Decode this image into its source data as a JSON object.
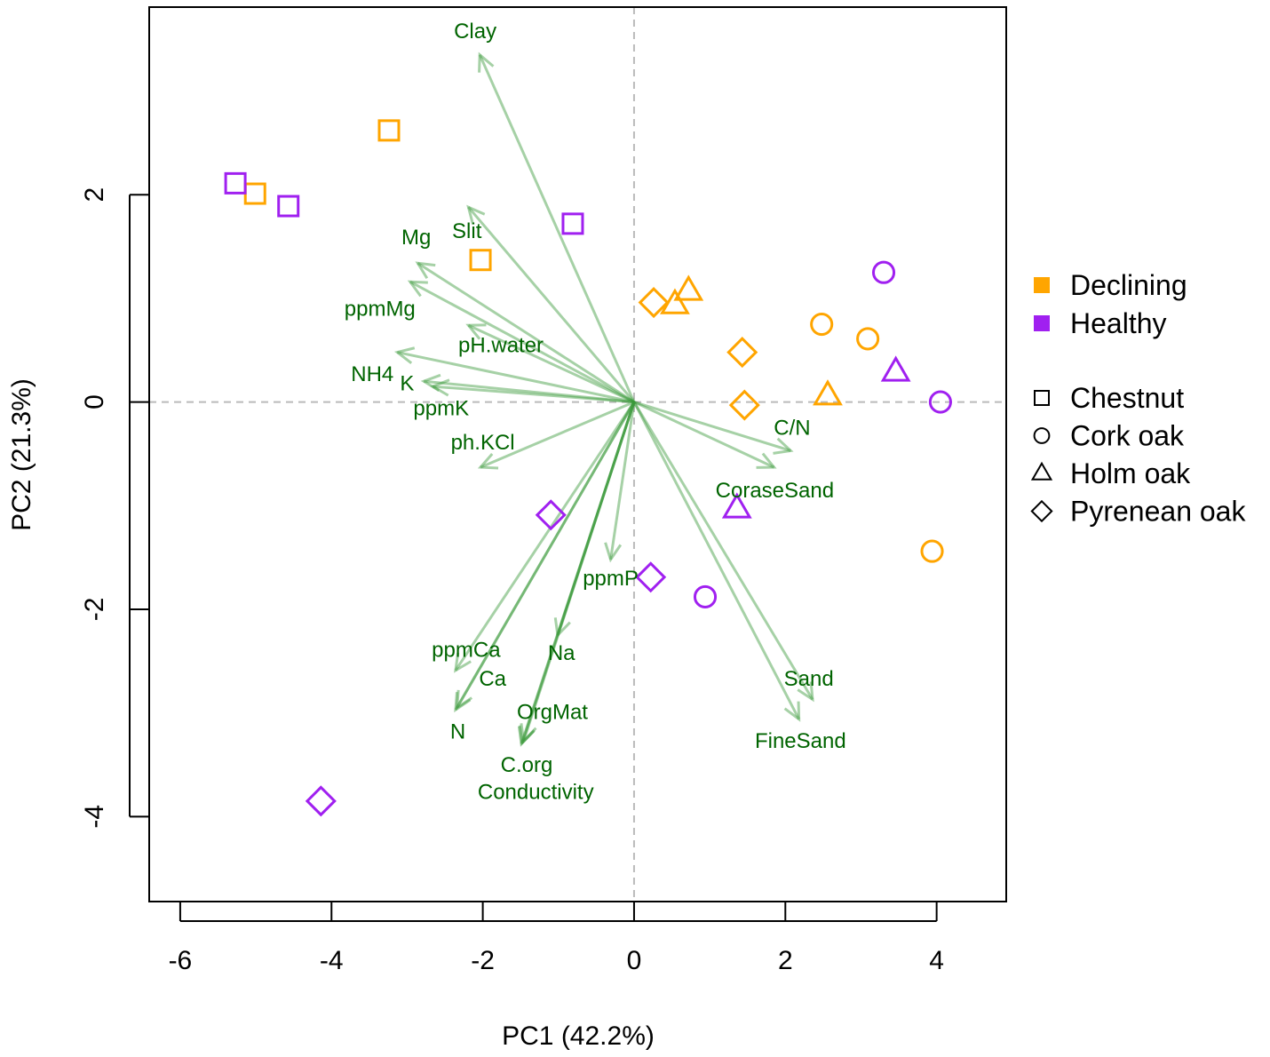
{
  "chart_data": {
    "type": "scatter",
    "subtype": "pca-biplot",
    "xlabel": "PC1 (42.2%)",
    "ylabel": "PC2 (21.3%)",
    "xlim": [
      -6.41,
      4.92
    ],
    "ylim": [
      -4.82,
      3.81
    ],
    "xticks": [
      -6,
      -4,
      -2,
      0,
      2,
      4
    ],
    "yticks": [
      -4,
      -2,
      0,
      2
    ],
    "reference_lines": {
      "x": 0,
      "y": 0
    },
    "colors": {
      "Declining": "#FFA500",
      "Healthy": "#A020F0",
      "arrow": "#3A9A3A",
      "arrow_label": "#006400"
    },
    "legend": {
      "placement": "right",
      "status": [
        "Declining",
        "Healthy"
      ],
      "species": [
        {
          "name": "Chestnut",
          "shape": "square"
        },
        {
          "name": "Cork oak",
          "shape": "circle"
        },
        {
          "name": "Holm oak",
          "shape": "triangle"
        },
        {
          "name": "Pyrenean oak",
          "shape": "diamond"
        }
      ]
    },
    "points": [
      {
        "status": "Declining",
        "species": "Chestnut",
        "x": -3.24,
        "y": 2.62
      },
      {
        "status": "Declining",
        "species": "Chestnut",
        "x": -5.01,
        "y": 2.01
      },
      {
        "status": "Declining",
        "species": "Chestnut",
        "x": -2.03,
        "y": 1.37
      },
      {
        "status": "Healthy",
        "species": "Chestnut",
        "x": -5.27,
        "y": 2.11
      },
      {
        "status": "Healthy",
        "species": "Chestnut",
        "x": -4.57,
        "y": 1.89
      },
      {
        "status": "Healthy",
        "species": "Chestnut",
        "x": -0.81,
        "y": 1.72
      },
      {
        "status": "Declining",
        "species": "Pyrenean oak",
        "x": 0.26,
        "y": 0.96
      },
      {
        "status": "Declining",
        "species": "Pyrenean oak",
        "x": 1.43,
        "y": 0.48
      },
      {
        "status": "Declining",
        "species": "Pyrenean oak",
        "x": 1.46,
        "y": -0.03
      },
      {
        "status": "Declining",
        "species": "Holm oak",
        "x": 0.72,
        "y": 1.07
      },
      {
        "status": "Declining",
        "species": "Holm oak",
        "x": 0.54,
        "y": 0.94
      },
      {
        "status": "Declining",
        "species": "Holm oak",
        "x": 2.56,
        "y": 0.06
      },
      {
        "status": "Declining",
        "species": "Cork oak",
        "x": 2.48,
        "y": 0.75
      },
      {
        "status": "Declining",
        "species": "Cork oak",
        "x": 3.09,
        "y": 0.61
      },
      {
        "status": "Declining",
        "species": "Cork oak",
        "x": 3.94,
        "y": -1.44
      },
      {
        "status": "Healthy",
        "species": "Cork oak",
        "x": 3.3,
        "y": 1.25
      },
      {
        "status": "Healthy",
        "species": "Cork oak",
        "x": 4.05,
        "y": 0.0
      },
      {
        "status": "Healthy",
        "species": "Cork oak",
        "x": 0.94,
        "y": -1.88
      },
      {
        "status": "Healthy",
        "species": "Holm oak",
        "x": 3.46,
        "y": 0.29
      },
      {
        "status": "Healthy",
        "species": "Holm oak",
        "x": 1.36,
        "y": -1.03
      },
      {
        "status": "Healthy",
        "species": "Pyrenean oak",
        "x": -1.1,
        "y": -1.09
      },
      {
        "status": "Healthy",
        "species": "Pyrenean oak",
        "x": 0.22,
        "y": -1.69
      },
      {
        "status": "Healthy",
        "species": "Pyrenean oak",
        "x": -4.14,
        "y": -3.85
      }
    ],
    "loadings": [
      {
        "name": "Clay",
        "x": -2.04,
        "y": 3.35,
        "lx": -2.1,
        "ly": 3.58
      },
      {
        "name": "Slit",
        "x": -2.19,
        "y": 1.88,
        "lx": -2.21,
        "ly": 1.65
      },
      {
        "name": "Mg",
        "x": -2.86,
        "y": 1.34,
        "lx": -2.88,
        "ly": 1.59
      },
      {
        "name": "ppmMg",
        "x": -2.96,
        "y": 1.16,
        "lx": -3.36,
        "ly": 0.9
      },
      {
        "name": "pH.water",
        "x": -2.19,
        "y": 0.74,
        "lx": -1.76,
        "ly": 0.55
      },
      {
        "name": "NH4",
        "x": -3.13,
        "y": 0.48,
        "lx": -3.46,
        "ly": 0.27
      },
      {
        "name": "K",
        "x": -2.78,
        "y": 0.2,
        "lx": -3.0,
        "ly": 0.18
      },
      {
        "name": "ppmK",
        "x": -2.66,
        "y": 0.15,
        "lx": -2.55,
        "ly": -0.06
      },
      {
        "name": "ph.KCl",
        "x": -2.03,
        "y": -0.63,
        "lx": -2.0,
        "ly": -0.39
      },
      {
        "name": "ppmP",
        "x": -0.31,
        "y": -1.52,
        "lx": -0.31,
        "ly": -1.7
      },
      {
        "name": "ppmCa",
        "x": -2.36,
        "y": -2.59,
        "lx": -2.22,
        "ly": -2.39
      },
      {
        "name": "Ca",
        "x": -2.34,
        "y": -2.95,
        "lx": -1.87,
        "ly": -2.67
      },
      {
        "name": "N",
        "x": -2.36,
        "y": -2.97,
        "lx": -2.33,
        "ly": -3.18
      },
      {
        "name": "Na",
        "x": -1.01,
        "y": -2.25,
        "lx": -0.96,
        "ly": -2.42
      },
      {
        "name": "OrgMat",
        "x": -1.46,
        "y": -3.27,
        "lx": -1.08,
        "ly": -2.99
      },
      {
        "name": "C.org",
        "x": -1.48,
        "y": -3.29,
        "lx": -1.42,
        "ly": -3.5
      },
      {
        "name": "Conductivity",
        "x": -1.49,
        "y": -3.3,
        "lx": -1.3,
        "ly": -3.76
      },
      {
        "name": "C/N",
        "x": 2.07,
        "y": -0.47,
        "lx": 2.09,
        "ly": -0.25
      },
      {
        "name": "CoraseSand",
        "x": 1.85,
        "y": -0.63,
        "lx": 1.86,
        "ly": -0.85
      },
      {
        "name": "Sand",
        "x": 2.36,
        "y": -2.87,
        "lx": 2.31,
        "ly": -2.67
      },
      {
        "name": "FineSand",
        "x": 2.18,
        "y": -3.06,
        "lx": 2.2,
        "ly": -3.27
      }
    ]
  }
}
